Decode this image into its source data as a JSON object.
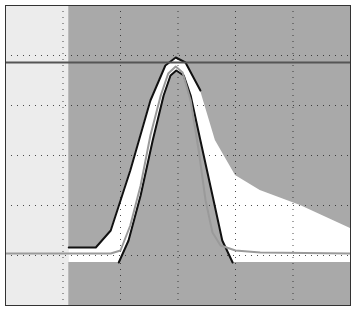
{
  "chart_data": {
    "type": "line",
    "xlim": [
      0,
      6
    ],
    "ylim": [
      0,
      6
    ],
    "xticks": [
      0,
      1,
      2,
      3,
      4,
      5,
      6
    ],
    "yticks": [
      0,
      1,
      2,
      3,
      4,
      5,
      6
    ],
    "grid": true,
    "tick_labels": false,
    "series": [
      {
        "type": "area",
        "color": "#ececec",
        "x": [
          0,
          1.1
        ],
        "values": [
          6,
          6
        ],
        "lower": [
          0,
          0
        ]
      },
      {
        "type": "area",
        "color": "#a9a9a9",
        "x": [
          1.1,
          6
        ],
        "values": [
          6,
          6
        ],
        "lower": [
          0,
          0
        ]
      },
      {
        "type": "area",
        "color": "#ffffff",
        "x": [
          1.1,
          1.57,
          1.83,
          2.17,
          2.52,
          2.78,
          2.96,
          3.13,
          3.39,
          3.65,
          4.0,
          4.43,
          5.13,
          6.0
        ],
        "values": [
          1.16,
          1.16,
          1.5,
          2.7,
          4.1,
          4.8,
          4.96,
          4.86,
          4.3,
          3.3,
          2.6,
          2.3,
          2.0,
          1.54
        ],
        "lower": [
          0.86,
          0.86,
          0.86,
          0.86,
          0.86,
          0.86,
          0.86,
          0.86,
          0.86,
          0.86,
          0.86,
          0.86,
          0.86,
          0.86
        ]
      },
      {
        "type": "area",
        "color": "#a9a9a9",
        "x": [
          1.97,
          2.14,
          2.35,
          2.56,
          2.75,
          2.87,
          2.97,
          3.1,
          3.22,
          3.39,
          3.6,
          3.77,
          3.95
        ],
        "values": [
          0.86,
          1.3,
          2.2,
          3.3,
          4.2,
          4.6,
          4.7,
          4.6,
          4.2,
          3.3,
          2.2,
          1.3,
          0.86
        ],
        "lower": [
          0.86,
          0.86,
          0.86,
          0.86,
          0.86,
          0.86,
          0.86,
          0.86,
          0.86,
          0.86,
          0.86,
          0.86,
          0.86
        ]
      },
      {
        "type": "line",
        "color": "#111111",
        "x": [
          1.97,
          2.14,
          2.35,
          2.56,
          2.75,
          2.87,
          2.97,
          3.1,
          3.22,
          3.39,
          3.6,
          3.77,
          3.95
        ],
        "values": [
          0.86,
          1.3,
          2.2,
          3.3,
          4.2,
          4.6,
          4.7,
          4.6,
          4.2,
          3.3,
          2.2,
          1.3,
          0.86
        ]
      },
      {
        "type": "line",
        "color": "#111111",
        "x": [
          1.1,
          1.57,
          1.83,
          2.17,
          2.52,
          2.78,
          2.96,
          3.13,
          3.39
        ],
        "values": [
          1.16,
          1.16,
          1.5,
          2.7,
          4.1,
          4.8,
          4.96,
          4.86,
          4.3
        ]
      },
      {
        "type": "line",
        "color": "#555555",
        "x": [
          0,
          6
        ],
        "values": [
          4.86,
          4.86
        ]
      },
      {
        "type": "line",
        "color": "#9a9a9a",
        "x": [
          0,
          1.83,
          2.0,
          2.17,
          2.35,
          2.52,
          2.7,
          2.83,
          2.96,
          3.08,
          3.22,
          3.36,
          3.48,
          3.6,
          3.74,
          4.0,
          4.43,
          6.0
        ],
        "values": [
          1.04,
          1.04,
          1.1,
          1.6,
          2.4,
          3.4,
          4.2,
          4.64,
          4.78,
          4.66,
          4.1,
          3.1,
          2.1,
          1.46,
          1.2,
          1.1,
          1.06,
          1.04
        ]
      }
    ]
  }
}
